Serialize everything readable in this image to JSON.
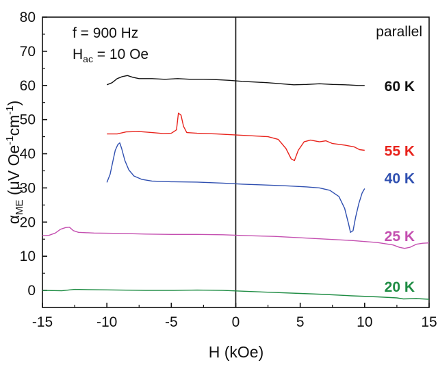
{
  "chart_data": {
    "type": "line",
    "xlabel": "H (kOe)",
    "ylabel": {
      "main": "α",
      "sub": "ME",
      "rest_a": " (μV Oe",
      "sup1": "-1",
      "rest_b": "cm",
      "sup2": "-1",
      "rest_c": ")"
    },
    "xlim": [
      -15,
      15
    ],
    "ylim": [
      -5,
      80
    ],
    "xticks": [
      -15,
      -10,
      -5,
      0,
      5,
      10,
      15
    ],
    "yticks": [
      0,
      10,
      20,
      30,
      40,
      50,
      60,
      70,
      80
    ],
    "grid": false,
    "annotations": {
      "freq": "f = 900 Hz",
      "hac_main": "H",
      "hac_sub": "ac",
      "hac_rest": " = 10 Oe",
      "mode": "parallel"
    },
    "series": [
      {
        "name": "60 K",
        "color": "#111111",
        "points": [
          [
            -10,
            60.2
          ],
          [
            -9.6,
            60.8
          ],
          [
            -9.2,
            62.0
          ],
          [
            -8.8,
            62.6
          ],
          [
            -8.4,
            62.9
          ],
          [
            -8.0,
            62.4
          ],
          [
            -7.5,
            62.0
          ],
          [
            -6.5,
            62.0
          ],
          [
            -5.5,
            61.8
          ],
          [
            -4.5,
            62.0
          ],
          [
            -3.5,
            61.8
          ],
          [
            -2.5,
            61.8
          ],
          [
            -1.5,
            61.7
          ],
          [
            -0.5,
            61.5
          ],
          [
            0.5,
            61.2
          ],
          [
            1.5,
            61.0
          ],
          [
            2.5,
            60.8
          ],
          [
            3.5,
            60.5
          ],
          [
            4.5,
            60.2
          ],
          [
            5.5,
            60.3
          ],
          [
            6.5,
            60.5
          ],
          [
            7.5,
            60.3
          ],
          [
            8.5,
            60.2
          ],
          [
            9.5,
            60.0
          ],
          [
            10.0,
            60.0
          ]
        ]
      },
      {
        "name": "55 K",
        "color": "#e8231c",
        "points": [
          [
            -10,
            45.8
          ],
          [
            -9.2,
            45.8
          ],
          [
            -8.5,
            46.4
          ],
          [
            -7.5,
            46.5
          ],
          [
            -6.5,
            46.2
          ],
          [
            -5.6,
            45.9
          ],
          [
            -5.0,
            46.0
          ],
          [
            -4.6,
            47.0
          ],
          [
            -4.45,
            51.9
          ],
          [
            -4.25,
            51.3
          ],
          [
            -4.05,
            48.0
          ],
          [
            -3.8,
            46.2
          ],
          [
            -3.0,
            46.0
          ],
          [
            -1.5,
            45.8
          ],
          [
            0.0,
            45.5
          ],
          [
            1.5,
            45.2
          ],
          [
            2.5,
            45.0
          ],
          [
            3.3,
            44.2
          ],
          [
            3.9,
            41.5
          ],
          [
            4.3,
            38.5
          ],
          [
            4.55,
            38.0
          ],
          [
            4.85,
            41.0
          ],
          [
            5.3,
            43.5
          ],
          [
            5.8,
            44.0
          ],
          [
            6.5,
            43.5
          ],
          [
            7.0,
            43.8
          ],
          [
            7.5,
            43.0
          ],
          [
            8.5,
            42.5
          ],
          [
            9.2,
            42.0
          ],
          [
            9.6,
            41.2
          ],
          [
            10.0,
            41.0
          ]
        ]
      },
      {
        "name": "40 K",
        "color": "#2f4fb0",
        "points": [
          [
            -10,
            31.6
          ],
          [
            -9.75,
            34.0
          ],
          [
            -9.55,
            37.5
          ],
          [
            -9.35,
            41.0
          ],
          [
            -9.15,
            42.7
          ],
          [
            -9.0,
            43.2
          ],
          [
            -8.85,
            41.5
          ],
          [
            -8.6,
            38.0
          ],
          [
            -8.3,
            35.3
          ],
          [
            -7.9,
            33.5
          ],
          [
            -7.3,
            32.5
          ],
          [
            -6.5,
            32.0
          ],
          [
            -5.0,
            31.8
          ],
          [
            -3.0,
            31.7
          ],
          [
            -1.0,
            31.4
          ],
          [
            0.5,
            31.1
          ],
          [
            2.0,
            30.9
          ],
          [
            4.0,
            30.6
          ],
          [
            5.5,
            30.3
          ],
          [
            6.5,
            30.0
          ],
          [
            7.3,
            29.3
          ],
          [
            8.0,
            27.5
          ],
          [
            8.45,
            24.0
          ],
          [
            8.75,
            19.5
          ],
          [
            8.9,
            17.0
          ],
          [
            9.1,
            17.5
          ],
          [
            9.3,
            21.5
          ],
          [
            9.55,
            25.5
          ],
          [
            9.8,
            28.5
          ],
          [
            10.0,
            29.8
          ]
        ]
      },
      {
        "name": "25 K",
        "color": "#c44fb0",
        "points": [
          [
            -15,
            16.0
          ],
          [
            -14.5,
            16.1
          ],
          [
            -14.0,
            16.8
          ],
          [
            -13.6,
            17.9
          ],
          [
            -13.2,
            18.4
          ],
          [
            -12.9,
            18.5
          ],
          [
            -12.6,
            17.5
          ],
          [
            -12.2,
            17.0
          ],
          [
            -11.0,
            16.8
          ],
          [
            -9.0,
            16.7
          ],
          [
            -7.0,
            16.5
          ],
          [
            -5.0,
            16.4
          ],
          [
            -3.0,
            16.4
          ],
          [
            -1.0,
            16.3
          ],
          [
            1.0,
            16.0
          ],
          [
            3.0,
            15.8
          ],
          [
            5.0,
            15.4
          ],
          [
            7.0,
            15.0
          ],
          [
            9.0,
            14.6
          ],
          [
            11.0,
            14.0
          ],
          [
            12.2,
            13.3
          ],
          [
            12.7,
            12.6
          ],
          [
            13.1,
            12.3
          ],
          [
            13.5,
            12.6
          ],
          [
            14.0,
            13.5
          ],
          [
            14.5,
            13.8
          ],
          [
            15.0,
            13.9
          ]
        ]
      },
      {
        "name": "20 K",
        "color": "#1e8c43",
        "points": [
          [
            -15,
            0.0
          ],
          [
            -13.5,
            -0.1
          ],
          [
            -12.5,
            0.3
          ],
          [
            -11.0,
            0.2
          ],
          [
            -9.0,
            0.1
          ],
          [
            -7.0,
            0.0
          ],
          [
            -5.0,
            0.0
          ],
          [
            -3.0,
            0.1
          ],
          [
            -1.0,
            0.0
          ],
          [
            1.0,
            -0.3
          ],
          [
            3.0,
            -0.6
          ],
          [
            5.0,
            -0.9
          ],
          [
            7.0,
            -1.2
          ],
          [
            9.0,
            -1.6
          ],
          [
            11.0,
            -1.9
          ],
          [
            12.5,
            -2.2
          ],
          [
            13.0,
            -2.5
          ],
          [
            14.0,
            -2.4
          ],
          [
            15.0,
            -2.6
          ]
        ]
      }
    ]
  }
}
